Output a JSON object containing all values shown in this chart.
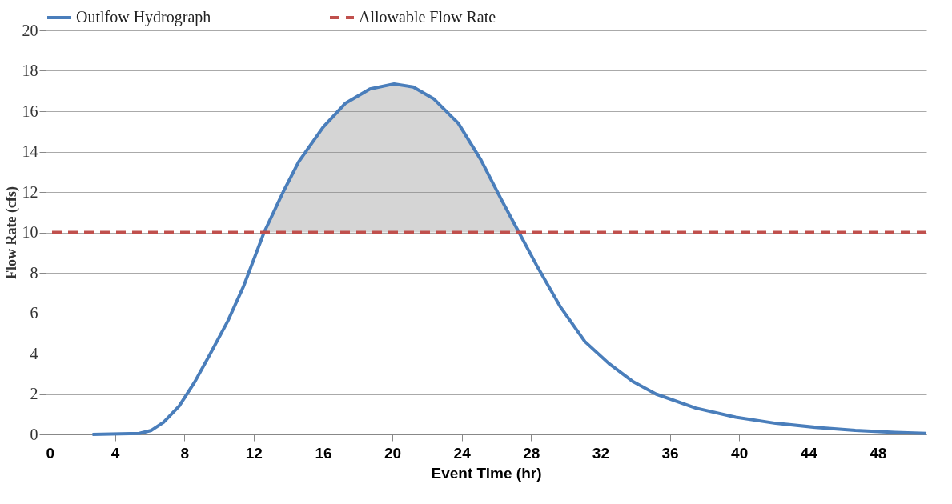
{
  "chart_data": {
    "type": "line",
    "xlabel": "Event Time (hr)",
    "ylabel": "Flow Rate (cfs)",
    "xlim": [
      0,
      50.8
    ],
    "xticks": [
      0,
      4,
      8,
      12,
      16,
      20,
      24,
      28,
      32,
      36,
      40,
      44,
      48
    ],
    "ylim": [
      0,
      20
    ],
    "yticks": [
      0,
      2,
      4,
      6,
      8,
      10,
      12,
      14,
      16,
      18,
      20
    ],
    "grid": "y",
    "legend": "top",
    "marker": "none",
    "series": [
      {
        "name": "Outlfow Hydrograph",
        "color": "#4a7ebb",
        "line_style": "solid",
        "x": [
          2.7,
          5.4,
          6.1,
          6.8,
          7.7,
          8.6,
          9.5,
          10.5,
          11.4,
          12.6,
          13.7,
          14.6,
          16.0,
          17.3,
          18.7,
          20.1,
          21.2,
          22.4,
          23.8,
          25.1,
          26.3,
          27.3,
          28.3,
          29.7,
          31.1,
          32.5,
          33.9,
          35.2,
          37.5,
          39.8,
          42.1,
          44.4,
          46.7,
          49.0,
          50.8
        ],
        "values": [
          0,
          0.05,
          0.2,
          0.6,
          1.4,
          2.6,
          4.0,
          5.6,
          7.3,
          10,
          12.0,
          13.5,
          15.2,
          16.4,
          17.1,
          17.35,
          17.2,
          16.6,
          15.4,
          13.6,
          11.6,
          10,
          8.4,
          6.3,
          4.6,
          3.5,
          2.6,
          2.0,
          1.3,
          0.85,
          0.55,
          0.35,
          0.2,
          0.1,
          0.05
        ],
        "lower": [
          null,
          null,
          null,
          null,
          null,
          null,
          null,
          null,
          null,
          10,
          10,
          10,
          10,
          10,
          10,
          10,
          10,
          10,
          10,
          10,
          10,
          10,
          null,
          null,
          null,
          null,
          null,
          null,
          null,
          null,
          null,
          null,
          null,
          null,
          null
        ],
        "upper": [
          null,
          null,
          null,
          null,
          null,
          null,
          null,
          null,
          null,
          10,
          12.0,
          13.5,
          15.2,
          16.4,
          17.1,
          17.35,
          17.2,
          16.6,
          15.4,
          13.6,
          11.6,
          10,
          null,
          null,
          null,
          null,
          null,
          null,
          null,
          null,
          null,
          null,
          null,
          null,
          null
        ]
      }
    ],
    "ref_lines": [
      {
        "axis": "y",
        "value": 10,
        "label": "Allowable Flow Rate",
        "color": "#c0504d",
        "line_style": "dashed"
      }
    ]
  }
}
